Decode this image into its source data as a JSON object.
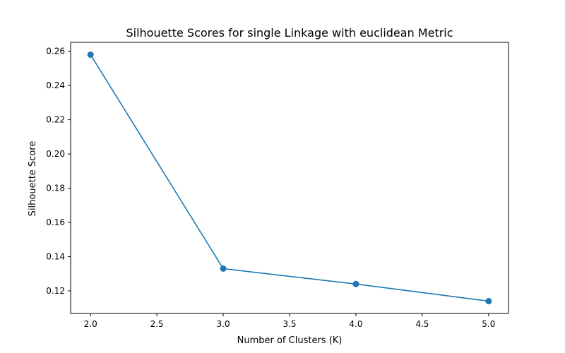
{
  "chart_data": {
    "type": "line",
    "title": "Silhouette Scores for single Linkage with euclidean Metric",
    "xlabel": "Number of Clusters (K)",
    "ylabel": "Silhouette Score",
    "x": [
      2,
      3,
      4,
      5
    ],
    "series": [
      {
        "values": [
          0.258,
          0.133,
          0.124,
          0.114
        ],
        "color": "#1f77b4",
        "marker": "circle"
      }
    ],
    "xlim": [
      1.85,
      5.15
    ],
    "ylim": [
      0.1068,
      0.2652
    ],
    "xticks": [
      {
        "value": 2.0,
        "label": "2.0"
      },
      {
        "value": 2.5,
        "label": "2.5"
      },
      {
        "value": 3.0,
        "label": "3.0"
      },
      {
        "value": 3.5,
        "label": "3.5"
      },
      {
        "value": 4.0,
        "label": "4.0"
      },
      {
        "value": 4.5,
        "label": "4.5"
      },
      {
        "value": 5.0,
        "label": "5.0"
      }
    ],
    "yticks": [
      {
        "value": 0.12,
        "label": "0.12"
      },
      {
        "value": 0.14,
        "label": "0.14"
      },
      {
        "value": 0.16,
        "label": "0.16"
      },
      {
        "value": 0.18,
        "label": "0.18"
      },
      {
        "value": 0.2,
        "label": "0.20"
      },
      {
        "value": 0.22,
        "label": "0.22"
      },
      {
        "value": 0.24,
        "label": "0.24"
      },
      {
        "value": 0.26,
        "label": "0.26"
      }
    ],
    "grid": false,
    "legend": "none"
  }
}
